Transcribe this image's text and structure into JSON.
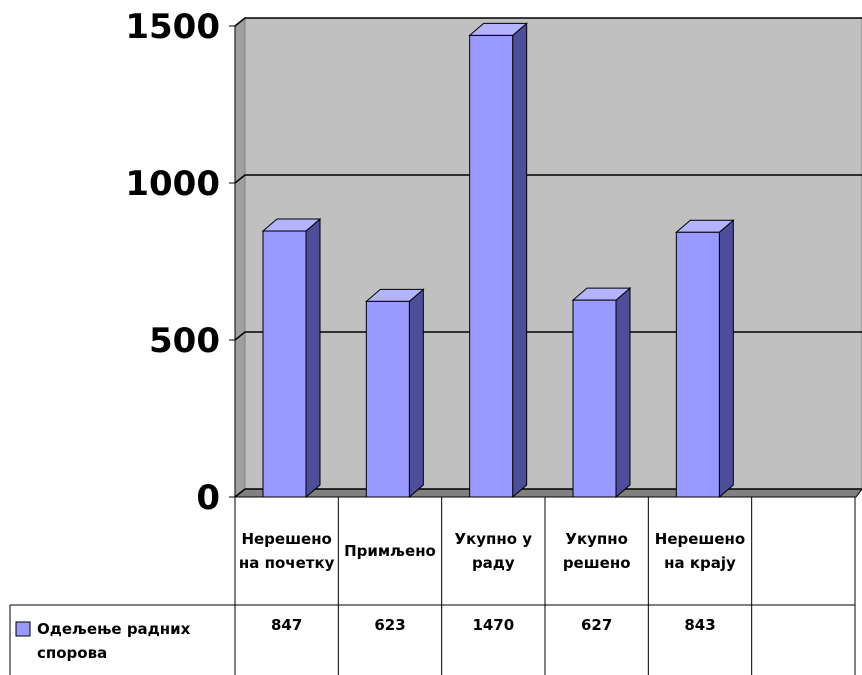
{
  "chart_data": {
    "type": "bar3d",
    "categories": [
      "Нерешено на почетку",
      "Примљено",
      "Укупно у раду",
      "Укупно решено",
      "Нерешено на крају",
      null
    ],
    "series": [
      {
        "name": "Одељење радних спорова",
        "color": "#9999ff",
        "values": [
          847,
          623,
          1470,
          627,
          843,
          null
        ]
      }
    ],
    "ylim": [
      0,
      1500
    ],
    "yticks": [
      0,
      500,
      1000,
      1500
    ],
    "grid": true,
    "legend": "data-table"
  }
}
